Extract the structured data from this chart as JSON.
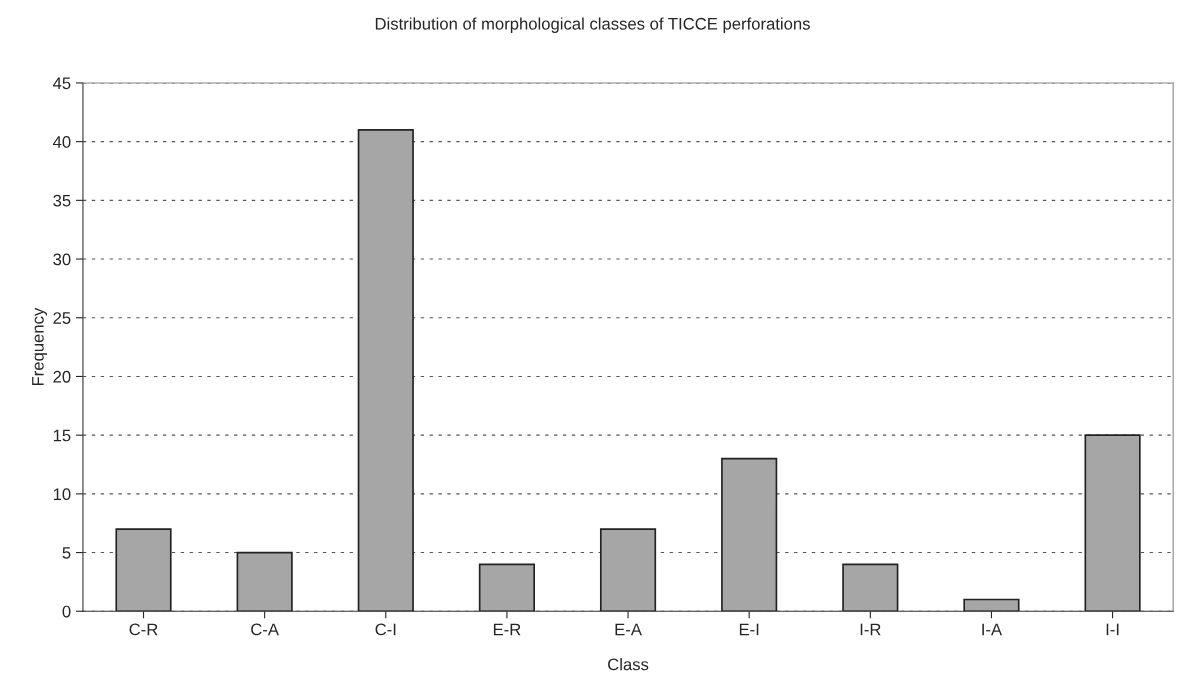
{
  "chart_data": {
    "type": "bar",
    "title": "Distribution of morphological classes of TICCE perforations",
    "xlabel": "Class",
    "ylabel": "Frequency",
    "categories": [
      "C-R",
      "C-A",
      "C-I",
      "E-R",
      "E-A",
      "E-I",
      "I-R",
      "I-A",
      "I-I"
    ],
    "values": [
      7,
      5,
      41,
      4,
      7,
      13,
      4,
      1,
      15
    ],
    "color": "#a6a6a6",
    "ylim": [
      0,
      45
    ],
    "yticks": [
      0,
      5,
      10,
      15,
      20,
      25,
      30,
      35,
      40,
      45
    ],
    "grid": "y",
    "legend": false
  }
}
